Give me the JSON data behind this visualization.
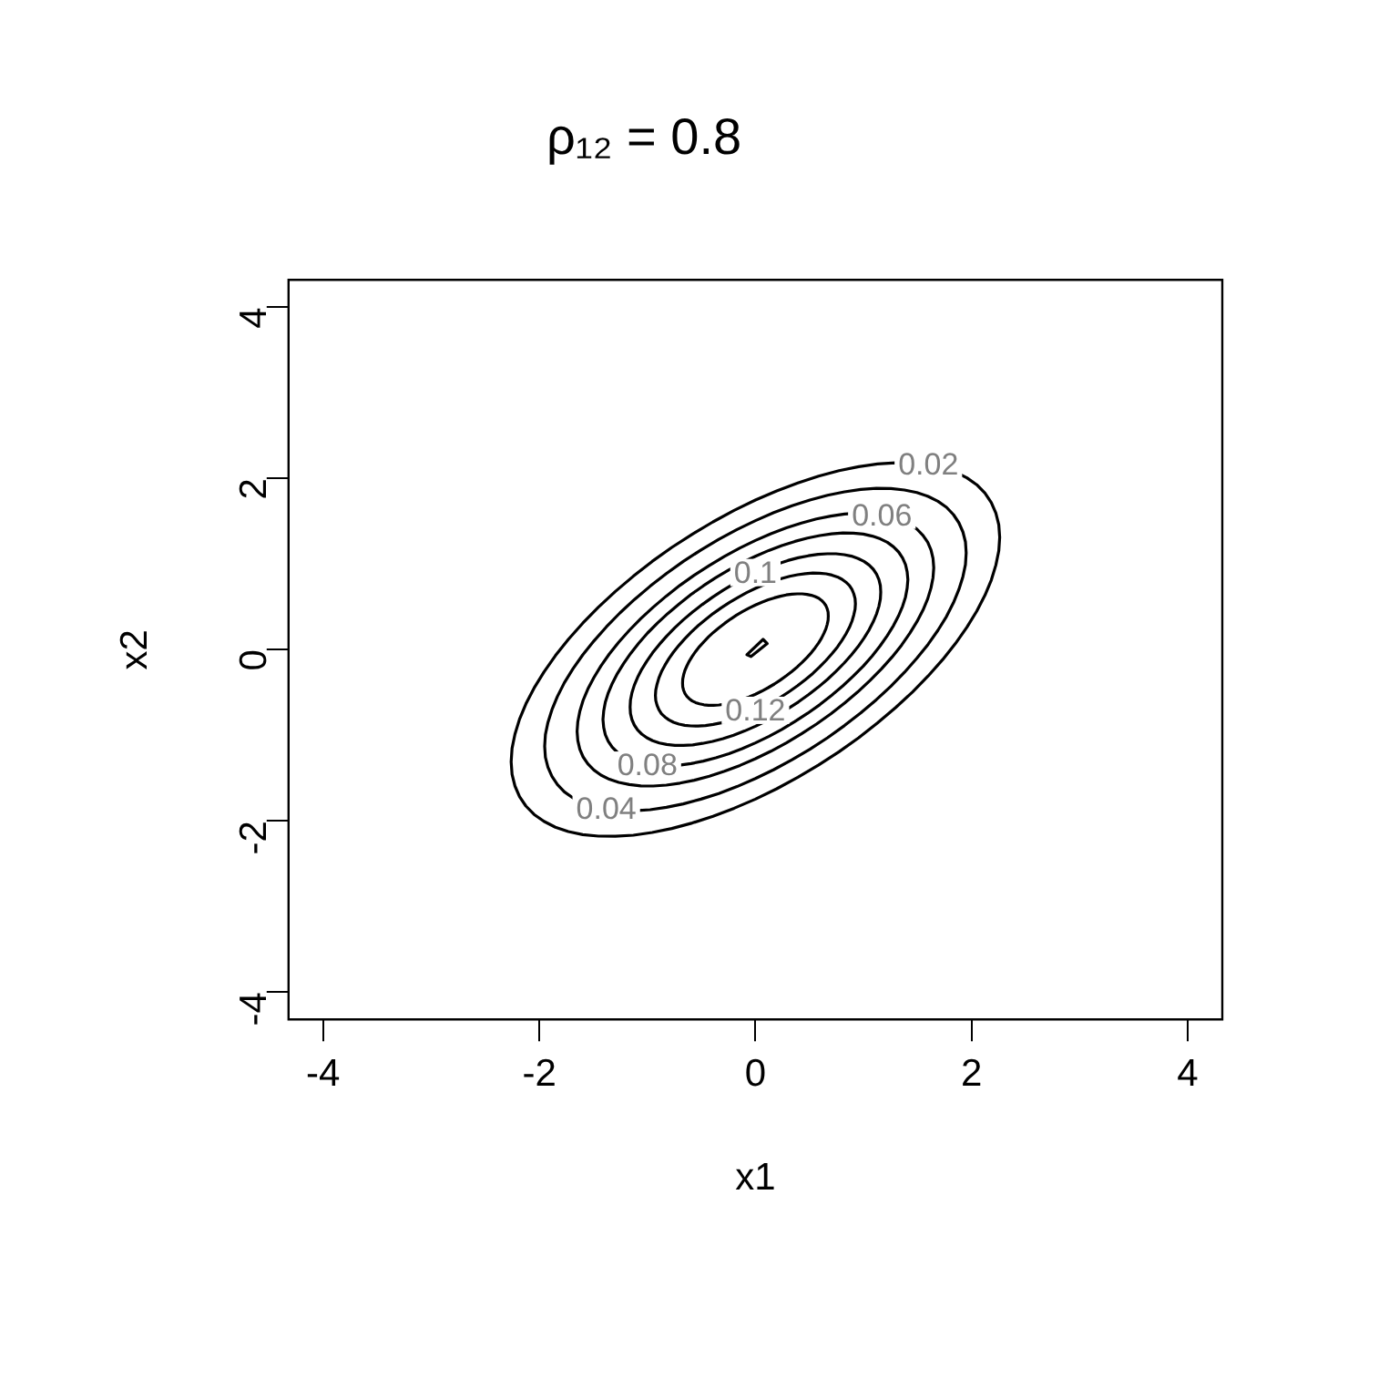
{
  "chart_data": {
    "type": "line",
    "title": "ρ₁₂ = 0.8",
    "xlabel": "x1",
    "ylabel": "x2",
    "xlim": [
      -4.32,
      4.32
    ],
    "ylim": [
      -4.32,
      4.32
    ],
    "xticks": [
      -4,
      -2,
      0,
      2,
      4
    ],
    "yticks": [
      -4,
      -2,
      0,
      2,
      4
    ],
    "grid": false,
    "legend": false,
    "annotations": [
      "0.02",
      "0.04",
      "0.06",
      "0.08",
      "0.1",
      "0.12"
    ]
  }
}
